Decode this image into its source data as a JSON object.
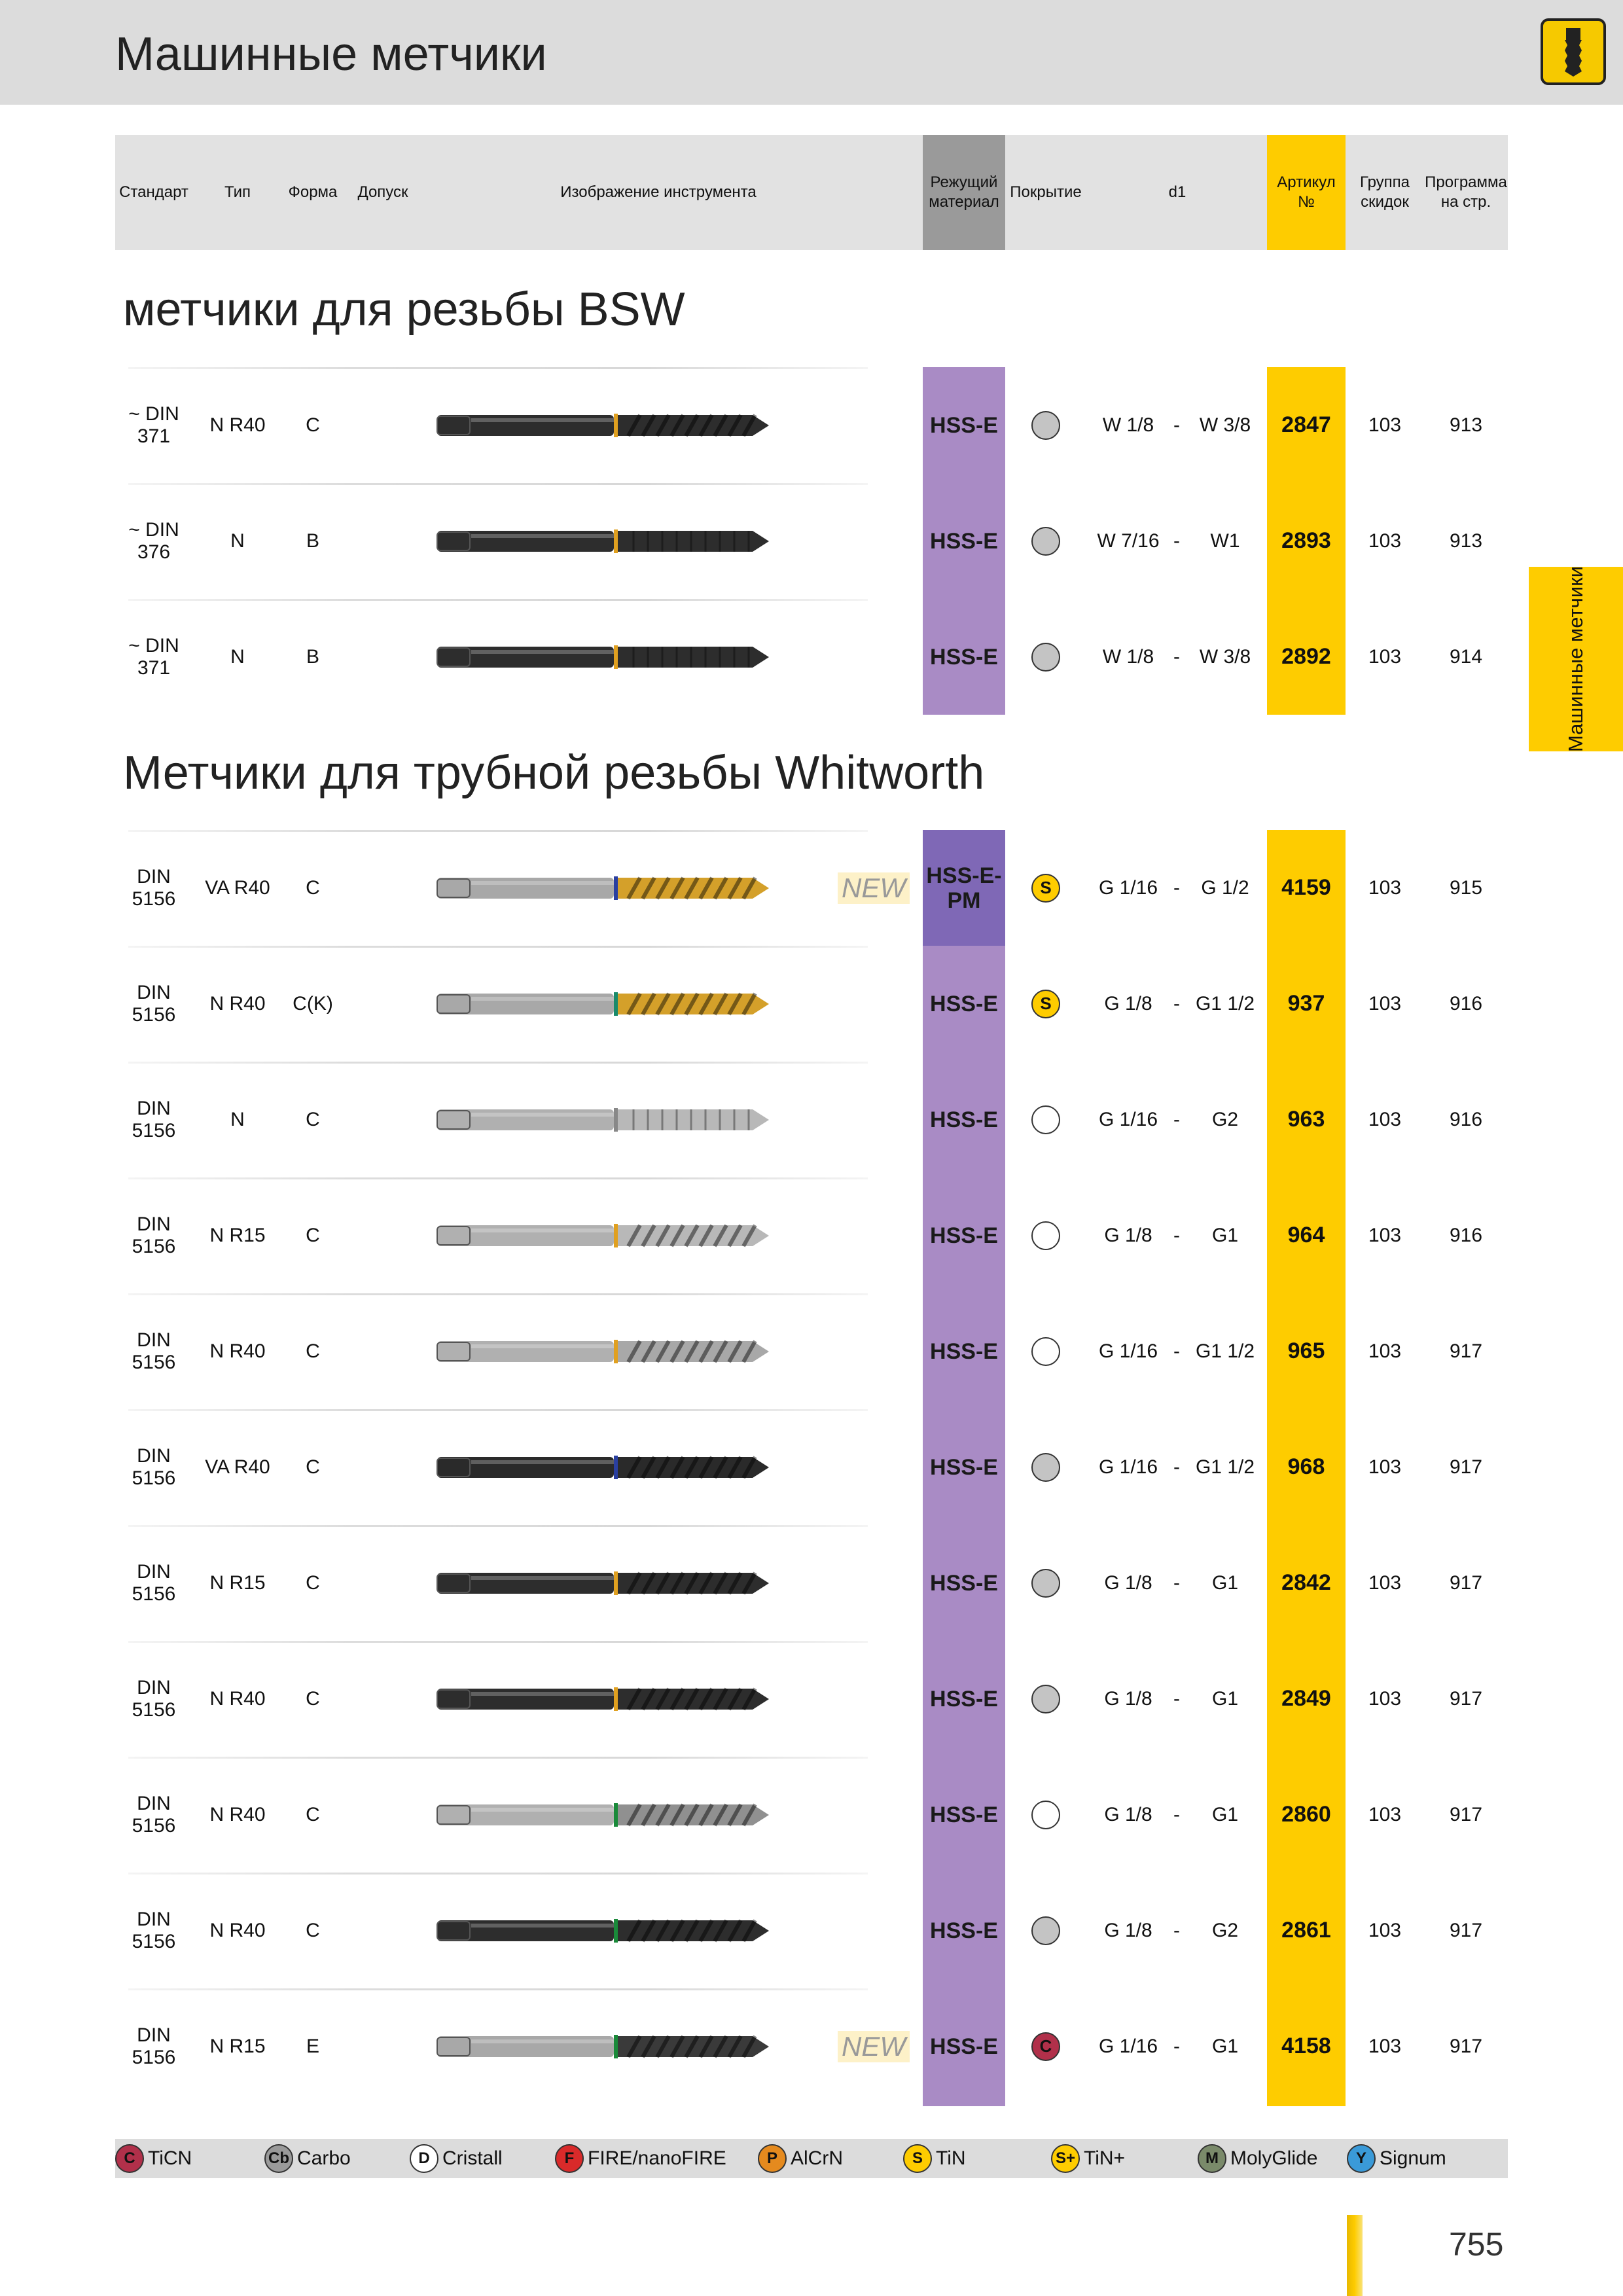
{
  "page": {
    "title": "Машинные метчики",
    "side_tab": "Машинные метчики",
    "number": "755"
  },
  "header": {
    "standard": "Стандарт",
    "type": "Тип",
    "form": "Форма",
    "tolerance": "Допуск",
    "image": "Изображение инструмента",
    "cutting_material": "Режущий материал",
    "coating": "Покрытие",
    "d1": "d1",
    "article": "Артикул №",
    "discount_group": "Группа скидок",
    "program_page": "Программа на стр."
  },
  "sections": [
    {
      "title": "метчики для  резьбы BSW",
      "rows": [
        {
          "standard": "~ DIN 371",
          "type": "N R40",
          "form": "C",
          "new": "",
          "material": "HSS-E",
          "coating": {
            "kind": "gray",
            "letter": ""
          },
          "d1_from": "W 1/8",
          "d1_to": "W 3/8",
          "article": "2847",
          "group": "103",
          "page": "913",
          "tool": {
            "body": "#2d2d2d",
            "ring": "#e0a020",
            "flute": "#2d2d2d",
            "style": "spiral"
          }
        },
        {
          "standard": "~ DIN 376",
          "type": "N",
          "form": "B",
          "new": "",
          "material": "HSS-E",
          "coating": {
            "kind": "gray",
            "letter": ""
          },
          "d1_from": "W 7/16",
          "d1_to": "W1",
          "article": "2893",
          "group": "103",
          "page": "913",
          "tool": {
            "body": "#2d2d2d",
            "ring": "#e0a020",
            "flute": "#2d2d2d",
            "style": "straight"
          }
        },
        {
          "standard": "~ DIN 371",
          "type": "N",
          "form": "B",
          "new": "",
          "material": "HSS-E",
          "coating": {
            "kind": "gray",
            "letter": ""
          },
          "d1_from": "W 1/8",
          "d1_to": "W 3/8",
          "article": "2892",
          "group": "103",
          "page": "914",
          "tool": {
            "body": "#2d2d2d",
            "ring": "#e0a020",
            "flute": "#2d2d2d",
            "style": "straight"
          }
        }
      ]
    },
    {
      "title": "Метчики для трубной резьбы Whitworth",
      "rows": [
        {
          "standard": "DIN 5156",
          "type": "VA R40",
          "form": "C",
          "new": "NEW",
          "material": "HSS-E-PM",
          "coating": {
            "kind": "s",
            "letter": "S"
          },
          "d1_from": "G 1/16",
          "d1_to": "G 1/2",
          "article": "4159",
          "group": "103",
          "page": "915",
          "tool": {
            "body": "#a8a8a8",
            "ring": "#2a3fa0",
            "flute": "#d4a02a",
            "style": "spiral"
          }
        },
        {
          "standard": "DIN 5156",
          "type": "N R40",
          "form": "C(K)",
          "new": "",
          "material": "HSS-E",
          "coating": {
            "kind": "s",
            "letter": "S"
          },
          "d1_from": "G 1/8",
          "d1_to": "G1 1/2",
          "article": "937",
          "group": "103",
          "page": "916",
          "tool": {
            "body": "#a8a8a8",
            "ring": "#1a8a6a",
            "flute": "#d4a02a",
            "style": "spiral"
          }
        },
        {
          "standard": "DIN 5156",
          "type": "N",
          "form": "C",
          "new": "",
          "material": "HSS-E",
          "coating": {
            "kind": "white",
            "letter": ""
          },
          "d1_from": "G 1/16",
          "d1_to": "G2",
          "article": "963",
          "group": "103",
          "page": "916",
          "tool": {
            "body": "#b0b0b0",
            "ring": "#888888",
            "flute": "#b8b8b8",
            "style": "straight"
          }
        },
        {
          "standard": "DIN 5156",
          "type": "N R15",
          "form": "C",
          "new": "",
          "material": "HSS-E",
          "coating": {
            "kind": "white",
            "letter": ""
          },
          "d1_from": "G 1/8",
          "d1_to": "G1",
          "article": "964",
          "group": "103",
          "page": "916",
          "tool": {
            "body": "#b0b0b0",
            "ring": "#e0a020",
            "flute": "#b8b8b8",
            "style": "spiral"
          }
        },
        {
          "standard": "DIN 5156",
          "type": "N R40",
          "form": "C",
          "new": "",
          "material": "HSS-E",
          "coating": {
            "kind": "white",
            "letter": ""
          },
          "d1_from": "G 1/16",
          "d1_to": "G1 1/2",
          "article": "965",
          "group": "103",
          "page": "917",
          "tool": {
            "body": "#b0b0b0",
            "ring": "#e0a020",
            "flute": "#a8a8a8",
            "style": "spiral"
          }
        },
        {
          "standard": "DIN 5156",
          "type": "VA R40",
          "form": "C",
          "new": "",
          "material": "HSS-E",
          "coating": {
            "kind": "gray",
            "letter": ""
          },
          "d1_from": "G 1/16",
          "d1_to": "G1 1/2",
          "article": "968",
          "group": "103",
          "page": "917",
          "tool": {
            "body": "#2a2a2a",
            "ring": "#2a3fa0",
            "flute": "#2a2a2a",
            "style": "spiral"
          }
        },
        {
          "standard": "DIN 5156",
          "type": "N R15",
          "form": "C",
          "new": "",
          "material": "HSS-E",
          "coating": {
            "kind": "gray",
            "letter": ""
          },
          "d1_from": "G 1/8",
          "d1_to": "G1",
          "article": "2842",
          "group": "103",
          "page": "917",
          "tool": {
            "body": "#2d2d2d",
            "ring": "#e0a020",
            "flute": "#2d2d2d",
            "style": "spiral"
          }
        },
        {
          "standard": "DIN 5156",
          "type": "N R40",
          "form": "C",
          "new": "",
          "material": "HSS-E",
          "coating": {
            "kind": "gray",
            "letter": ""
          },
          "d1_from": "G 1/8",
          "d1_to": "G1",
          "article": "2849",
          "group": "103",
          "page": "917",
          "tool": {
            "body": "#2d2d2d",
            "ring": "#e0a020",
            "flute": "#2d2d2d",
            "style": "spiral"
          }
        },
        {
          "standard": "DIN 5156",
          "type": "N R40",
          "form": "C",
          "new": "",
          "material": "HSS-E",
          "coating": {
            "kind": "white",
            "letter": ""
          },
          "d1_from": "G 1/8",
          "d1_to": "G1",
          "article": "2860",
          "group": "103",
          "page": "917",
          "tool": {
            "body": "#b0b0b0",
            "ring": "#1a8a3a",
            "flute": "#909090",
            "style": "spiral"
          }
        },
        {
          "standard": "DIN 5156",
          "type": "N R40",
          "form": "C",
          "new": "",
          "material": "HSS-E",
          "coating": {
            "kind": "gray",
            "letter": ""
          },
          "d1_from": "G 1/8",
          "d1_to": "G2",
          "article": "2861",
          "group": "103",
          "page": "917",
          "tool": {
            "body": "#2d2d2d",
            "ring": "#1a8a3a",
            "flute": "#2d2d2d",
            "style": "spiral"
          }
        },
        {
          "standard": "DIN 5156",
          "type": "N R15",
          "form": "E",
          "new": "NEW",
          "material": "HSS-E",
          "coating": {
            "kind": "c",
            "letter": "C"
          },
          "d1_from": "G 1/16",
          "d1_to": "G1",
          "article": "4158",
          "group": "103",
          "page": "917",
          "tool": {
            "body": "#a8a8a8",
            "ring": "#1a8a3a",
            "flute": "#3a3a3a",
            "style": "spiral"
          }
        }
      ]
    }
  ],
  "legend": [
    {
      "letter": "C",
      "label": "TiCN",
      "color": "#b1304a"
    },
    {
      "letter": "Cb",
      "label": "Carbo",
      "color": "#9a9a9a"
    },
    {
      "letter": "D",
      "label": "Cristall",
      "color": "#ffffff"
    },
    {
      "letter": "F",
      "label": "FIRE/nanoFIRE",
      "color": "#d92a2a"
    },
    {
      "letter": "P",
      "label": "AlCrN",
      "color": "#e58a1e"
    },
    {
      "letter": "S",
      "label": "TiN",
      "color": "#fecc00"
    },
    {
      "letter": "S+",
      "label": "TiN+",
      "color": "#fecc00"
    },
    {
      "letter": "M",
      "label": "MolyGlide",
      "color": "#7a8a6a"
    },
    {
      "letter": "Y",
      "label": "Signum",
      "color": "#3a9ad8"
    }
  ]
}
